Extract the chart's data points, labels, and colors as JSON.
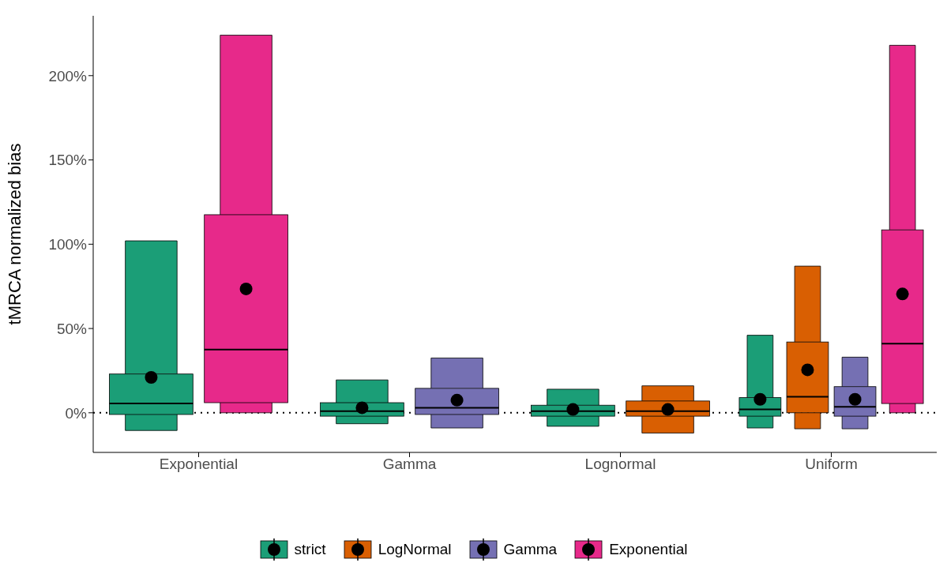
{
  "chart_data": {
    "type": "box",
    "ylabel": "tMRCA normalized bias",
    "categories": [
      "Exponential",
      "Gamma",
      "Lognormal",
      "Uniform"
    ],
    "series": [
      {
        "name": "strict",
        "color": "#1b9e77",
        "boxes": [
          {
            "low": -10.5,
            "q1": -1,
            "median": 5.5,
            "q3": 23,
            "high": 102,
            "mean": 21
          },
          {
            "low": -6.5,
            "q1": -2,
            "median": 1,
            "q3": 6,
            "high": 19.5,
            "mean": 3
          },
          {
            "low": -8,
            "q1": -2,
            "median": 1,
            "q3": 4.5,
            "high": 14,
            "mean": 2
          },
          {
            "low": -9,
            "q1": -2,
            "median": 2,
            "q3": 9,
            "high": 46,
            "mean": 8
          }
        ]
      },
      {
        "name": "LogNormal",
        "color": "#d95f02",
        "boxes": [
          null,
          null,
          {
            "low": -12,
            "q1": -2,
            "median": 1,
            "q3": 7,
            "high": 16,
            "mean": 2
          },
          {
            "low": -9.5,
            "q1": 0,
            "median": 9.5,
            "q3": 42,
            "high": 87,
            "mean": 25.5
          }
        ]
      },
      {
        "name": "Gamma",
        "color": "#7570b3",
        "boxes": [
          null,
          {
            "low": -9,
            "q1": -1,
            "median": 3,
            "q3": 14.5,
            "high": 32.5,
            "mean": 7.5
          },
          null,
          {
            "low": -9.5,
            "q1": -2,
            "median": 3.5,
            "q3": 15.5,
            "high": 33,
            "mean": 8
          }
        ]
      },
      {
        "name": "Exponential",
        "color": "#e7298a",
        "boxes": [
          {
            "low": 0,
            "q1": 6,
            "median": 37.5,
            "q3": 117.5,
            "high": 224,
            "mean": 73.5
          },
          null,
          null,
          {
            "low": 0,
            "q1": 5.5,
            "median": 41,
            "q3": 108.5,
            "high": 218,
            "mean": 70.5
          }
        ]
      }
    ],
    "ylim": [
      -23.5,
      235.5
    ],
    "yticks": [
      {
        "value": 0,
        "label": "0%"
      },
      {
        "value": 50,
        "label": "50%"
      },
      {
        "value": 100,
        "label": "100%"
      },
      {
        "value": 150,
        "label": "150%"
      },
      {
        "value": 200,
        "label": "200%"
      }
    ],
    "ref_lines": [
      {
        "axis": "y",
        "value": 0,
        "line_style": "dotted",
        "color": "#000000"
      }
    ],
    "grid": false,
    "legend": "bottom"
  }
}
